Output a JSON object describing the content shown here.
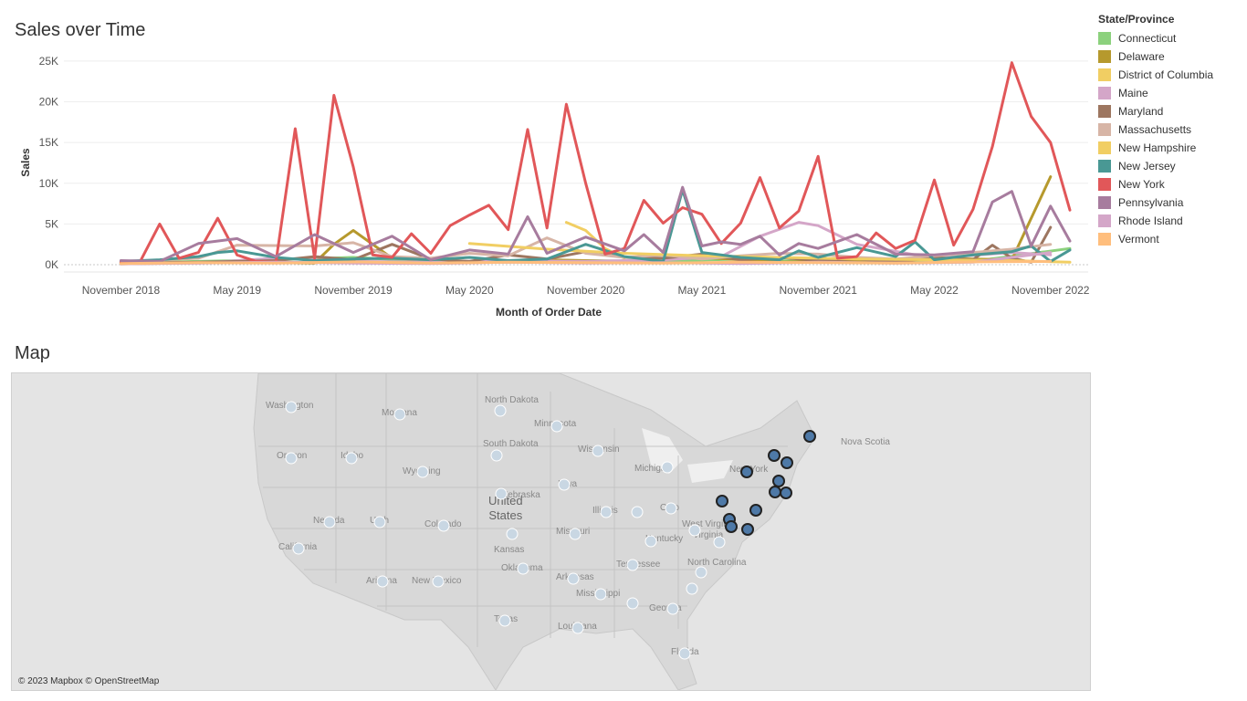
{
  "chart_title": "Sales over Time",
  "map_title": "Map",
  "attribution": "© 2023 Mapbox © OpenStreetMap",
  "chart_data": {
    "type": "line",
    "title": "Sales over Time",
    "xlabel": "Month of Order Date",
    "ylabel": "Sales",
    "ylim": [
      0,
      26000
    ],
    "yticks": [
      0,
      5000,
      10000,
      15000,
      20000,
      25000
    ],
    "ytick_labels": [
      "0K",
      "5K",
      "10K",
      "15K",
      "20K",
      "25K"
    ],
    "xlim": [
      0,
      51
    ],
    "xticks": [
      2,
      8,
      14,
      20,
      26,
      32,
      38,
      44,
      50
    ],
    "xtick_labels": [
      "November 2018",
      "May 2019",
      "November 2019",
      "May 2020",
      "November 2020",
      "May 2021",
      "November 2021",
      "May 2022",
      "November 2022"
    ],
    "grid": true,
    "legend_title": "State/Province",
    "legend_position": "right",
    "series": [
      {
        "name": "Connecticut",
        "color": "#8cd17d",
        "x": [
          2,
          6,
          10,
          14,
          18,
          22,
          26,
          30,
          34,
          38,
          42,
          46,
          51
        ],
        "y": [
          200,
          400,
          600,
          900,
          400,
          300,
          500,
          400,
          700,
          300,
          500,
          400,
          2000
        ]
      },
      {
        "name": "Delaware",
        "color": "#b6992d",
        "x": [
          2,
          8,
          12,
          13,
          14,
          16,
          20,
          24,
          28,
          32,
          36,
          40,
          44,
          48,
          50
        ],
        "y": [
          100,
          300,
          200,
          2500,
          4200,
          800,
          300,
          600,
          400,
          900,
          300,
          500,
          800,
          600,
          10800
        ]
      },
      {
        "name": "District of Columbia",
        "color": "#f1ce63",
        "x": [
          25,
          26,
          27,
          28
        ],
        "y": [
          5200,
          4200,
          2000,
          800
        ]
      },
      {
        "name": "Maine",
        "color": "#d4a6c8",
        "x": [
          2,
          6,
          10,
          14,
          18,
          22,
          26,
          30,
          33,
          35,
          37,
          38,
          40,
          44,
          48,
          50
        ],
        "y": [
          300,
          200,
          800,
          400,
          300,
          500,
          400,
          600,
          1000,
          3500,
          5200,
          4800,
          2500,
          800,
          1500,
          1200
        ]
      },
      {
        "name": "Maryland",
        "color": "#9d7660",
        "x": [
          2,
          6,
          10,
          12,
          14,
          16,
          18,
          20,
          22,
          24,
          26,
          28,
          30,
          32,
          34,
          36,
          38,
          40,
          42,
          44,
          46,
          47,
          48,
          49,
          50
        ],
        "y": [
          200,
          300,
          500,
          1000,
          600,
          2500,
          700,
          400,
          1200,
          700,
          1600,
          900,
          800,
          1300,
          600,
          900,
          500,
          700,
          300,
          900,
          600,
          2400,
          800,
          300,
          4600
        ]
      },
      {
        "name": "Massachusetts",
        "color": "#d7b5a6",
        "x": [
          2,
          6,
          8,
          12,
          14,
          16,
          18,
          20,
          22,
          24,
          26,
          28,
          30,
          32,
          34,
          36,
          38,
          40,
          42,
          44,
          46,
          48,
          50
        ],
        "y": [
          300,
          800,
          2400,
          2300,
          2700,
          1000,
          800,
          1400,
          1100,
          3300,
          1400,
          900,
          1200,
          700,
          1100,
          1400,
          1300,
          900,
          700,
          1100,
          1500,
          1900,
          2500
        ]
      },
      {
        "name": "New Hampshire",
        "color": "#f1ce63",
        "x": [
          20,
          24,
          28,
          32,
          36,
          40,
          44,
          48,
          51
        ],
        "y": [
          2600,
          1900,
          1400,
          1100,
          900,
          700,
          600,
          500,
          300
        ]
      },
      {
        "name": "New Jersey",
        "color": "#499894",
        "x": [
          2,
          4,
          6,
          7,
          8,
          10,
          12,
          14,
          16,
          18,
          20,
          22,
          24,
          26,
          28,
          30,
          31,
          32,
          34,
          36,
          37,
          38,
          40,
          42,
          43,
          44,
          46,
          48,
          49,
          50,
          51
        ],
        "y": [
          400,
          600,
          1000,
          1500,
          1700,
          900,
          500,
          700,
          800,
          600,
          900,
          500,
          700,
          2500,
          1000,
          400,
          9200,
          1500,
          900,
          600,
          1700,
          900,
          2100,
          1000,
          2800,
          600,
          1200,
          1600,
          2300,
          400,
          1800
        ]
      },
      {
        "name": "New York",
        "color": "#e15759",
        "x": [
          2,
          3,
          4,
          5,
          6,
          7,
          8,
          9,
          10,
          11,
          12,
          13,
          14,
          15,
          16,
          17,
          18,
          19,
          20,
          21,
          22,
          23,
          24,
          25,
          26,
          27,
          28,
          29,
          30,
          31,
          32,
          33,
          34,
          35,
          36,
          37,
          38,
          39,
          40,
          41,
          42,
          43,
          44,
          45,
          46,
          47,
          48,
          49,
          50,
          51
        ],
        "y": [
          300,
          400,
          5000,
          800,
          1500,
          5700,
          1200,
          400,
          300,
          16700,
          800,
          20800,
          12000,
          1200,
          900,
          3800,
          1400,
          4800,
          6100,
          7300,
          4300,
          16600,
          4500,
          19700,
          10000,
          1300,
          2000,
          7900,
          5100,
          7000,
          6200,
          2600,
          5100,
          10700,
          4500,
          6600,
          13300,
          800,
          1000,
          3900,
          2000,
          3000,
          10400,
          2400,
          6800,
          14500,
          24800,
          18200,
          15000,
          6700
        ]
      },
      {
        "name": "Pennsylvania",
        "color": "#a77c9e",
        "x": [
          2,
          4,
          6,
          8,
          10,
          12,
          14,
          16,
          18,
          20,
          22,
          23,
          24,
          26,
          28,
          29,
          30,
          31,
          32,
          33,
          34,
          35,
          36,
          37,
          38,
          40,
          42,
          44,
          46,
          47,
          48,
          49,
          50,
          51
        ],
        "y": [
          500,
          400,
          2600,
          3200,
          1000,
          3700,
          1500,
          3500,
          600,
          1800,
          1300,
          5900,
          1400,
          3400,
          1700,
          3700,
          1500,
          9500,
          2300,
          2800,
          2500,
          3500,
          1200,
          2600,
          2000,
          3700,
          1300,
          1200,
          1600,
          7700,
          9000,
          2300,
          7200,
          2900
        ]
      },
      {
        "name": "Rhode Island",
        "color": "#d4a6c8",
        "x": [
          2,
          6,
          10,
          14,
          18,
          22,
          26,
          30,
          34,
          38,
          42,
          46,
          50
        ],
        "y": [
          100,
          200,
          300,
          200,
          150,
          300,
          200,
          250,
          150,
          300,
          200,
          300,
          1500
        ]
      },
      {
        "name": "Vermont",
        "color": "#ffbe7d",
        "x": [
          2,
          6,
          10,
          14,
          18,
          22,
          26,
          30,
          34,
          38,
          42,
          46,
          50
        ],
        "y": [
          150,
          250,
          200,
          350,
          200,
          300,
          250,
          200,
          300,
          250,
          200,
          350,
          400
        ]
      }
    ]
  },
  "map": {
    "big_label": [
      "United",
      "States"
    ],
    "labels": [
      "Washington",
      "Montana",
      "North Dakota",
      "Minnesota",
      "South Dakota",
      "Wisconsin",
      "Michigan",
      "Oregon",
      "Idaho",
      "Wyoming",
      "New York",
      "Iowa",
      "Nebraska",
      "Nevada",
      "Utah",
      "Colorado",
      "Illinois",
      "Ohio",
      "California",
      "Missouri",
      "West Virginia",
      "Kentucky",
      "Virginia",
      "Kansas",
      "Oklahoma",
      "Tennessee",
      "North Carolina",
      "Arizona",
      "New Mexico",
      "Arkansas",
      "Mississippi",
      "Georgia",
      "Texas",
      "Louisiana",
      "Florida",
      "Nova Scotia"
    ],
    "point_color": "#4e79a7",
    "point_stroke": "#222222",
    "faint_point_color": "#c9d7e3"
  }
}
